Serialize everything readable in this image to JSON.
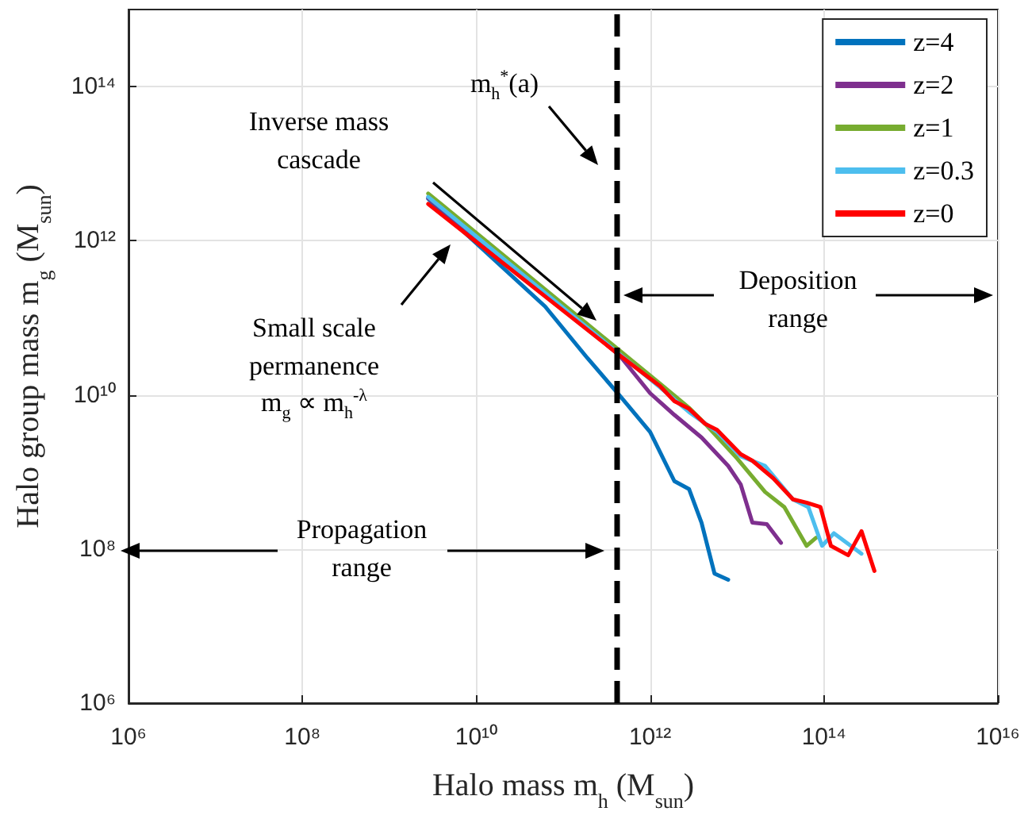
{
  "chart_data": {
    "type": "line",
    "xlabel": "Halo mass m$_{h}$ (M$_{sun}$)",
    "ylabel": "Halo group mass m$_{g}$ (M$_{sun}$)",
    "log": "xy",
    "xlim": [
      1000000.0,
      1e+16
    ],
    "ylim": [
      1000000.0,
      1000000000000000.0
    ],
    "xticks": [
      {
        "value": 1000000.0,
        "label": "10⁶"
      },
      {
        "value": 100000000.0,
        "label": "10⁸"
      },
      {
        "value": 10000000000.0,
        "label": "10¹⁰"
      },
      {
        "value": 1000000000000.0,
        "label": "10¹²"
      },
      {
        "value": 100000000000000.0,
        "label": "10¹⁴"
      },
      {
        "value": 1e+16,
        "label": "10¹⁶"
      }
    ],
    "yticks": [
      {
        "value": 1000000.0,
        "label": "10⁶"
      },
      {
        "value": 100000000.0,
        "label": "10⁸"
      },
      {
        "value": 10000000000.0,
        "label": "10¹⁰"
      },
      {
        "value": 1000000000000.0,
        "label": "10¹²"
      },
      {
        "value": 100000000000000.0,
        "label": "10¹⁴"
      }
    ],
    "grid": true,
    "legend": "top right",
    "marker": "none",
    "line_style": "solid",
    "series": [
      {
        "name": "z=4",
        "color": "#0072bd",
        "x": [
          2800000000.0,
          7800000000.0,
          62000000000.0,
          190000000000.0,
          440000000000.0,
          1000000000000.0,
          1900000000000.0,
          2800000000000.0,
          3900000000000.0,
          5500000000000.0,
          7900000000000.0
        ],
        "values": [
          3500000000000.0,
          1200000000000.0,
          140000000000.0,
          30000000000.0,
          10000000000.0,
          3300000000.0,
          760000000.0,
          600000000.0,
          220000000.0,
          48000000.0,
          40000000.0
        ]
      },
      {
        "name": "z=2",
        "color": "#7e2f8e",
        "x": [
          2800000000.0,
          440000000000.0,
          1000000000000.0,
          1900000000000.0,
          3900000000000.0,
          7900000000000.0,
          11000000000000.0,
          15000000000000.0,
          22000000000000.0,
          32000000000000.0
        ],
        "values": [
          3600000000000.0,
          33000000000.0,
          10500000000.0,
          5500000000.0,
          2800000000.0,
          1200000000.0,
          690000000.0,
          220000000.0,
          210000000.0,
          120000000.0
        ]
      },
      {
        "name": "z=1",
        "color": "#77ac30",
        "x": [
          2800000000.0,
          440000000000.0,
          1300000000000.0,
          2800000000000.0,
          4300000000000.0,
          10000000000000.0,
          21000000000000.0,
          35000000000000.0,
          63000000000000.0,
          81000000000000.0
        ],
        "values": [
          4100000000000.0,
          38000000000.0,
          14000000000.0,
          6800000000.0,
          4200000000.0,
          1500000000.0,
          550000000.0,
          350000000.0,
          110000000.0,
          140000000.0
        ]
      },
      {
        "name": "z=0.3",
        "color": "#4dbeee",
        "x": [
          2800000000.0,
          440000000000.0,
          1300000000000.0,
          2800000000000.0,
          5900000000000.0,
          11000000000000.0,
          21000000000000.0,
          44000000000000.0,
          66000000000000.0,
          95000000000000.0,
          130000000000000.0,
          270000000000000.0
        ],
        "values": [
          3700000000000.0,
          34000000000.0,
          12500000000.0,
          6000000000.0,
          3300000000.0,
          1600000000.0,
          1200000000.0,
          440000000.0,
          350000000.0,
          110000000.0,
          160000000.0,
          87000000.0
        ]
      },
      {
        "name": "z=0",
        "color": "#ff0000",
        "x": [
          2800000000.0,
          440000000000.0,
          1300000000000.0,
          1900000000000.0,
          2800000000000.0,
          4300000000000.0,
          5900000000000.0,
          11000000000000.0,
          15000000000000.0,
          26000000000000.0,
          44000000000000.0,
          63000000000000.0,
          91000000000000.0,
          120000000000000.0,
          190000000000000.0,
          270000000000000.0,
          380000000000000.0
        ],
        "values": [
          3000000000000.0,
          33000000000.0,
          13000000000.0,
          8300000000.0,
          6600000000.0,
          4200000000.0,
          3500000000.0,
          1700000000.0,
          1400000000.0,
          830000000.0,
          440000000.0,
          400000000.0,
          350000000.0,
          110000000.0,
          83000000.0,
          170000000.0,
          52000000.0
        ]
      }
    ],
    "ref_lines": [
      {
        "axis": "x",
        "value": 420000000000.0,
        "color": "#000000",
        "line_style": "dashed"
      }
    ],
    "annotations": [
      "Inverse mass cascade",
      "m$_{h}$$^{*}$(a)",
      "Deposition range",
      "Small scale permanence",
      "m$_{g}$ ∝ m$_{h}$$^{-λ}$",
      "Propagation range"
    ]
  }
}
